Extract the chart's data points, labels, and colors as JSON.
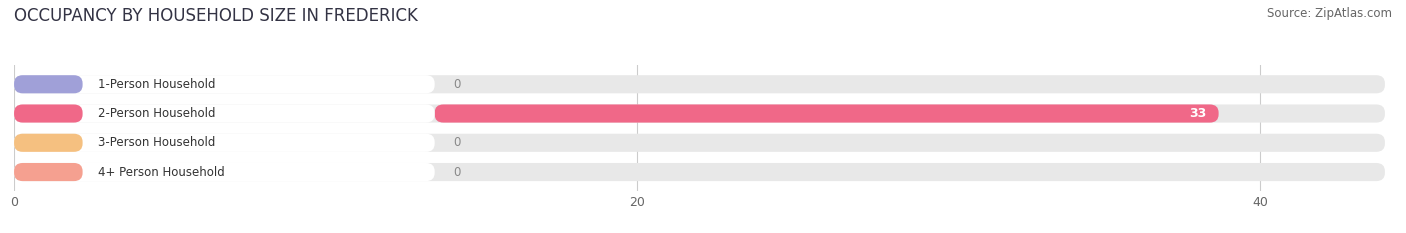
{
  "title": "OCCUPANCY BY HOUSEHOLD SIZE IN FREDERICK",
  "source": "Source: ZipAtlas.com",
  "categories": [
    "1-Person Household",
    "2-Person Household",
    "3-Person Household",
    "4+ Person Household"
  ],
  "values": [
    0,
    33,
    0,
    0
  ],
  "bar_colors": [
    "#a0a0d8",
    "#f06888",
    "#f5c080",
    "#f5a090"
  ],
  "xlim": [
    0,
    44
  ],
  "xticks": [
    0,
    20,
    40
  ],
  "background_color": "#ffffff",
  "track_color": "#e8e8e8",
  "label_box_color": "#ffffff",
  "title_fontsize": 12,
  "source_fontsize": 8.5,
  "bar_height": 0.62
}
